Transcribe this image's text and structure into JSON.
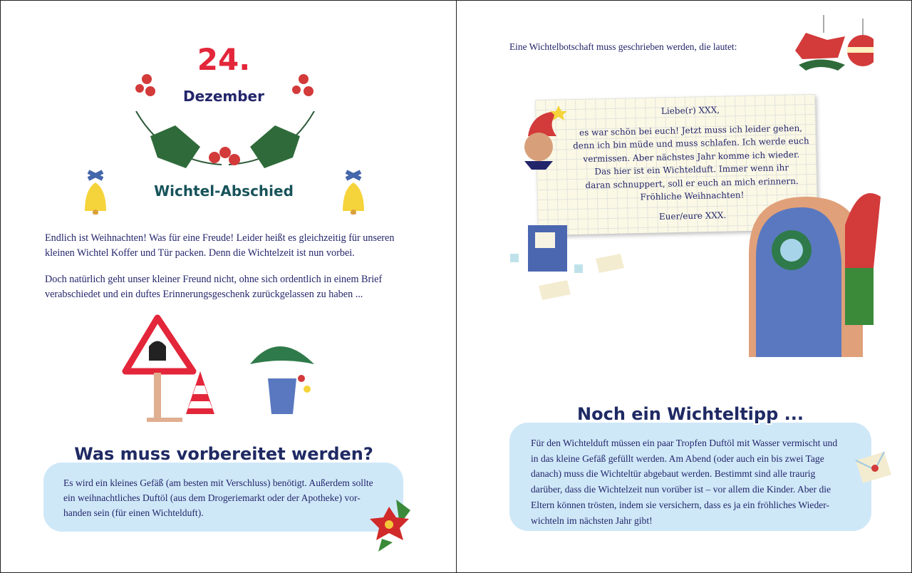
{
  "left_page": {
    "date_number": "24.",
    "date_month": "Dezember",
    "title": "Wichtel-Abschied",
    "intro_paragraphs": [
      [
        "Endlich ist Weihnachten! Was für eine Freude! Leider heißt es gleichzeitig für unseren",
        "kleinen Wichtel Koffer und Tür packen. Denn die Wichtelzeit ist nun vorbei."
      ],
      [
        "Doch natürlich geht unser kleiner Freund nicht, ohne sich ordentlich in einem Brief",
        "verabschiedet und ein duftes Erinnerungsgeschenk zurückgelassen zu haben ..."
      ]
    ],
    "prep_heading": "Was muss vorbereitet werden?",
    "prep_lines": [
      "Es wird ein kleines Gefäß (am besten mit Verschluss) benötigt. Außerdem sollte",
      "ein weihnachtliches Duftöl (aus dem Drogeriemarkt oder der Apotheke) vor-",
      "handen sein (für einen Wichtelduft)."
    ]
  },
  "right_page": {
    "intro": "Eine Wichtelbotschaft muss geschrieben werden, die lautet:",
    "letter": {
      "greeting": "Liebe(r) XXX,",
      "body_lines": [
        "es war schön bei euch! Jetzt muss ich leider gehen,",
        "denn ich bin müde und muss schlafen. Ich werde euch",
        "vermissen. Aber nächstes Jahr komme ich wieder.",
        "Das hier ist ein Wichtelduft. Immer wenn ihr",
        "daran schnuppert, soll er euch an mich erinnern.",
        "Fröhliche Weihnachten!"
      ],
      "signature": "Euer/eure XXX."
    },
    "tip_heading": "Noch ein Wichteltipp ...",
    "tip_lines": [
      "Für den Wichtelduft müssen ein paar Tropfen Duftöl mit Wasser vermischt und",
      "in das kleine Gefäß gefüllt werden. Am Abend (oder auch ein bis zwei Tage",
      "danach) muss die Wichteltür abgebaut werden. Bestimmt sind alle traurig",
      "darüber, dass die Wichtelzeit nun vorüber ist – vor allem die Kinder. Aber die",
      "Eltern können trösten, indem sie versichern, dass es ja ein fröhliches Wieder-",
      "wichteln im nächsten Jahr gibt!"
    ]
  },
  "colors": {
    "accent_red": "#e3263a",
    "navy": "#23256b",
    "teal": "#17535a",
    "box_blue": "#cfe8f8"
  }
}
